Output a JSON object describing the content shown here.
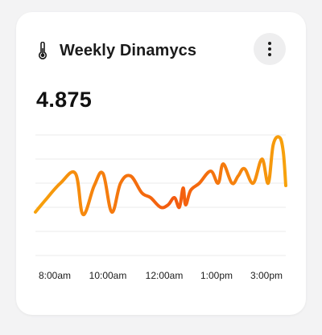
{
  "card": {
    "icon": "thermometer-icon",
    "title": "Weekly Dinamycs",
    "value": "4.875",
    "menu_icon": "more-vertical-icon"
  },
  "colors": {
    "line_start": "#f7a20c",
    "line_mid": "#f35a0f",
    "line_end": "#f7a20c",
    "grid": "#ebebeb"
  },
  "chart_data": {
    "type": "line",
    "x_tick_labels": [
      "8:00am",
      "10:00am",
      "12:00am",
      "1:00pm",
      "3:00pm"
    ],
    "grid": true,
    "ylim": [
      0,
      5
    ],
    "series": [
      {
        "x": [
          0,
          0.04,
          0.1,
          0.16,
          0.19,
          0.235,
          0.27,
          0.305,
          0.34,
          0.38,
          0.425,
          0.46,
          0.5,
          0.53,
          0.555,
          0.575,
          0.59,
          0.6,
          0.62,
          0.655,
          0.7,
          0.73,
          0.75,
          0.785,
          0.81,
          0.835,
          0.87,
          0.905,
          0.93,
          0.95,
          0.975,
          0.99,
          1.0
        ],
        "values": [
          1.8,
          2.3,
          3.0,
          3.4,
          1.7,
          2.9,
          3.4,
          1.8,
          3.0,
          3.3,
          2.6,
          2.4,
          2.0,
          2.1,
          2.4,
          2.0,
          2.8,
          2.1,
          2.7,
          3.0,
          3.5,
          3.0,
          3.8,
          3.0,
          3.3,
          3.6,
          3.0,
          4.0,
          3.0,
          4.6,
          4.9,
          4.3,
          2.9
        ]
      }
    ]
  }
}
